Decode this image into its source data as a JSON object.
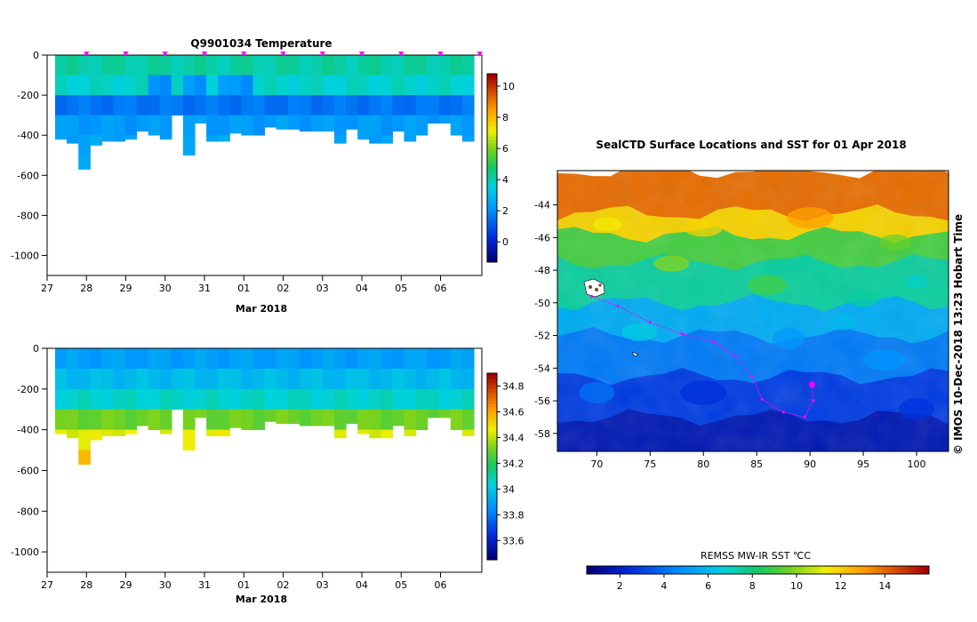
{
  "chart_data": [
    {
      "type": "heatmap",
      "title": "Q9901034  Temperature",
      "xlabel": "Mar 2018",
      "ylabel": "",
      "xlim": [
        27,
        38.05
      ],
      "ylim": [
        -1100,
        0
      ],
      "x_ticks": [
        "27",
        "28",
        "29",
        "30",
        "31",
        "01",
        "02",
        "03",
        "04",
        "05",
        "06"
      ],
      "y_ticks": [
        "0",
        "-200",
        "-400",
        "-600",
        "-800",
        "-1000"
      ],
      "colorbar_ticks": [
        "10",
        "8",
        "6",
        "4",
        "2",
        "0"
      ],
      "colorbar_range": [
        -1.3,
        10.8
      ],
      "surface_markers": [
        28,
        29,
        30,
        31,
        32,
        33,
        34,
        35,
        36,
        37,
        38
      ],
      "profile_depths": [
        -420,
        -440,
        -570,
        -450,
        -430,
        -430,
        -420,
        -380,
        -400,
        -420,
        -300,
        -500,
        -340,
        -430,
        -430,
        -390,
        -400,
        -400,
        -360,
        -370,
        -370,
        -380,
        -380,
        -380,
        -440,
        -370,
        -420,
        -440,
        -440,
        -380,
        -430,
        -400,
        -340,
        -340,
        -400,
        -430
      ],
      "layers_depth": [
        0,
        -100,
        -200,
        -300,
        -400,
        -500,
        -600
      ],
      "layers_value": [
        4.1,
        3.7,
        1.5,
        2.2,
        2.4,
        2.4,
        2.4
      ]
    },
    {
      "type": "heatmap",
      "title": "",
      "xlabel": "Mar 2018",
      "ylabel": "",
      "xlim": [
        27,
        38.05
      ],
      "ylim": [
        -1100,
        0
      ],
      "x_ticks": [
        "27",
        "28",
        "29",
        "30",
        "31",
        "01",
        "02",
        "03",
        "04",
        "05",
        "06"
      ],
      "y_ticks": [
        "0",
        "-200",
        "-400",
        "-600",
        "-800",
        "-1000"
      ],
      "colorbar_ticks": [
        "34.8",
        "34.6",
        "34.4",
        "34.2",
        "34",
        "33.8",
        "33.6"
      ],
      "colorbar_range": [
        33.45,
        34.9
      ],
      "layers_depth": [
        0,
        -100,
        -200,
        -300,
        -400,
        -500,
        -600
      ],
      "layers_value": [
        33.88,
        33.96,
        34.05,
        34.3,
        34.45,
        34.55,
        34.6
      ]
    },
    {
      "type": "heatmap",
      "title": "SealCTD Surface Locations and SST for 01 Apr 2018",
      "xlabel": "",
      "ylabel": "",
      "xlim": [
        66.3,
        103
      ],
      "ylim": [
        -59.1,
        -41.9
      ],
      "x_ticks": [
        "70",
        "75",
        "80",
        "85",
        "90",
        "95",
        "100"
      ],
      "y_ticks": [
        "-44",
        "-46",
        "-48",
        "-50",
        "-52",
        "-54",
        "-56",
        "-58"
      ],
      "sst_bands": [
        {
          "lat_top": -41.9,
          "lat_bottom": -44.5,
          "value": 14
        },
        {
          "lat_top": -44.5,
          "lat_bottom": -45.8,
          "value": 12
        },
        {
          "lat_top": -45.8,
          "lat_bottom": -47.5,
          "value": 9
        },
        {
          "lat_top": -47.5,
          "lat_bottom": -50.0,
          "value": 7.5
        },
        {
          "lat_top": -50.0,
          "lat_bottom": -52.0,
          "value": 5.5
        },
        {
          "lat_top": -52.0,
          "lat_bottom": -54.5,
          "value": 4.2
        },
        {
          "lat_top": -54.5,
          "lat_bottom": -57.0,
          "value": 2.8
        },
        {
          "lat_top": -57.0,
          "lat_bottom": -59.1,
          "value": 1.6
        }
      ],
      "track": [
        {
          "lon": 69.5,
          "lat": -49.6
        },
        {
          "lon": 72,
          "lat": -50.2
        },
        {
          "lon": 75,
          "lat": -51.2
        },
        {
          "lon": 78,
          "lat": -51.9
        },
        {
          "lon": 81,
          "lat": -52.4
        },
        {
          "lon": 83,
          "lat": -53.3
        },
        {
          "lon": 84.5,
          "lat": -54.5
        },
        {
          "lon": 85.5,
          "lat": -55.9
        },
        {
          "lon": 87.5,
          "lat": -56.7
        },
        {
          "lon": 89.5,
          "lat": -57.0
        },
        {
          "lon": 90.3,
          "lat": -56.0
        },
        {
          "lon": 90.2,
          "lat": -55.0
        }
      ],
      "colorbar": {
        "label": "REMSS MW-IR SST ℃C",
        "range": [
          0.5,
          16
        ],
        "ticks": [
          "2",
          "4",
          "6",
          "8",
          "10",
          "12",
          "14"
        ]
      }
    }
  ],
  "copyright_text": "©  IMOS 10-Dec-2018 13:23 Hobart Time"
}
